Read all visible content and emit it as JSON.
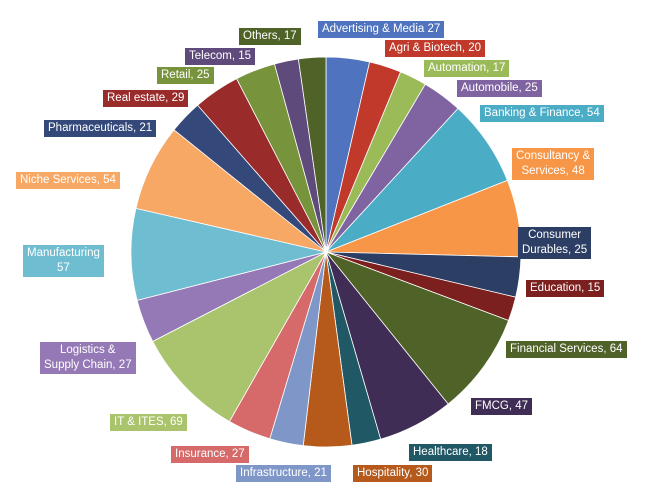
{
  "chart_data": {
    "type": "pie",
    "title": "",
    "slices": [
      {
        "label": "Advertising & Media",
        "value": 27,
        "label_text": "Advertising & Media 27",
        "color": "#4f73be"
      },
      {
        "label": "Agri & Biotech",
        "value": 20,
        "label_text": "Agri & Biotech, 20",
        "color": "#c0392b"
      },
      {
        "label": "Automation",
        "value": 17,
        "label_text": "Automation, 17",
        "color": "#9bbb59"
      },
      {
        "label": "Automobile",
        "value": 25,
        "label_text": "Automobile, 25",
        "color": "#8064a2"
      },
      {
        "label": "Banking & Finance",
        "value": 54,
        "label_text": "Banking & Finance, 54",
        "color": "#4bacc6"
      },
      {
        "label": "Consultancy & Services",
        "value": 48,
        "label_text": "Consultancy &\nServices, 48",
        "color": "#f79646"
      },
      {
        "label": "Consumer Durables",
        "value": 25,
        "label_text": "Consumer\nDurables, 25",
        "color": "#2c3e63"
      },
      {
        "label": "Education",
        "value": 15,
        "label_text": "Education, 15",
        "color": "#7b1f1f"
      },
      {
        "label": "Financial Services",
        "value": 64,
        "label_text": "Financial Services, 64",
        "color": "#4f6228"
      },
      {
        "label": "FMCG",
        "value": 47,
        "label_text": "FMCG, 47",
        "color": "#3f2d55"
      },
      {
        "label": "Healthcare",
        "value": 18,
        "label_text": "Healthcare, 18",
        "color": "#215866"
      },
      {
        "label": "Hospitality",
        "value": 30,
        "label_text": "Hospitality, 30",
        "color": "#b65a1c"
      },
      {
        "label": "Infrastructure",
        "value": 21,
        "label_text": "Infrastructure, 21",
        "color": "#7f96c8"
      },
      {
        "label": "Insurance",
        "value": 27,
        "label_text": "Insurance, 27",
        "color": "#d66a6a"
      },
      {
        "label": "IT & ITES",
        "value": 69,
        "label_text": "IT & ITES, 69",
        "color": "#a9c46c"
      },
      {
        "label": "Logistics & Supply Chain",
        "value": 27,
        "label_text": "Logistics &\nSupply Chain, 27",
        "color": "#9579b6"
      },
      {
        "label": "Manufacturing",
        "value": 57,
        "label_text": "Manufacturing\n57",
        "color": "#6fbdd0"
      },
      {
        "label": "Niche Services",
        "value": 54,
        "label_text": "Niche Services, 54",
        "color": "#f8a865"
      },
      {
        "label": "Pharmaceuticals",
        "value": 21,
        "label_text": "Pharmaceuticals, 21",
        "color": "#34497a"
      },
      {
        "label": "Real estate",
        "value": 29,
        "label_text": "Real estate, 29",
        "color": "#9a2b2b"
      },
      {
        "label": "Retail",
        "value": 25,
        "label_text": "Retail, 25",
        "color": "#77933c"
      },
      {
        "label": "Telecom",
        "value": 15,
        "label_text": "Telecom, 15",
        "color": "#5f4a7c"
      },
      {
        "label": "Others",
        "value": 17,
        "label_text": "Others, 17",
        "color": "#4f6228"
      }
    ],
    "legend": "none",
    "labels": "callout boxes outside pie, filled with slice color"
  }
}
